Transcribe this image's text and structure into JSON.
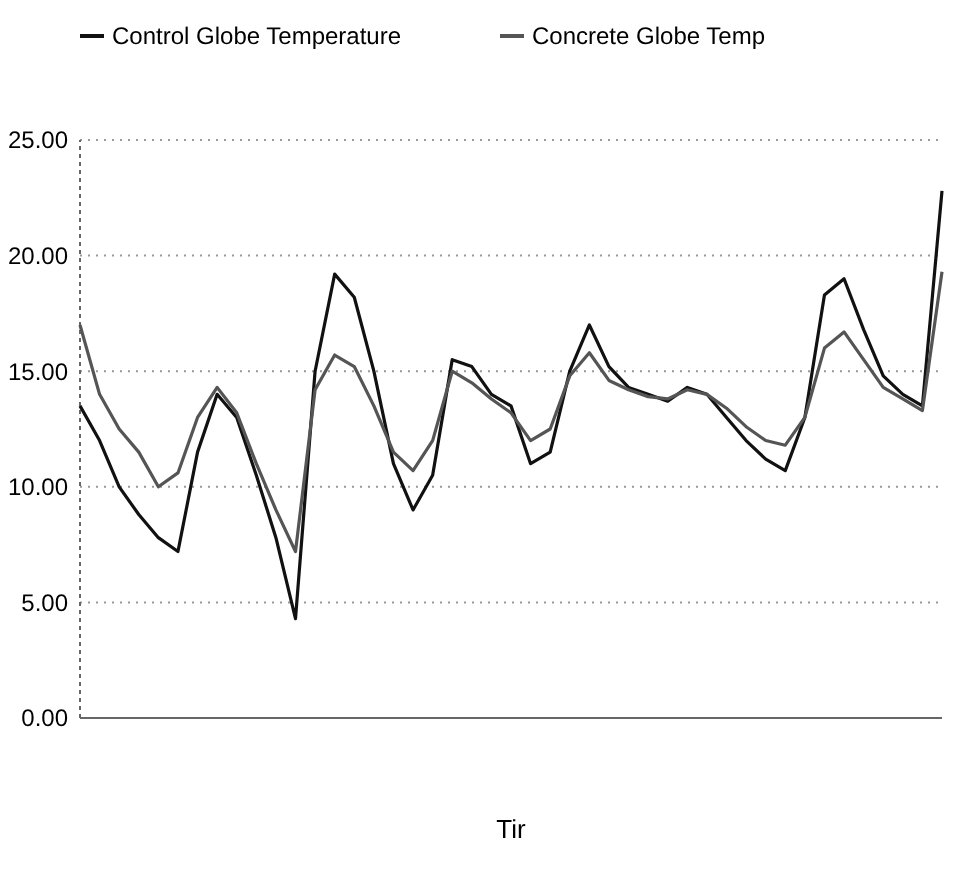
{
  "chart_data": {
    "type": "line",
    "xlabel": "Tir",
    "categories": [
      null,
      null,
      null,
      null,
      null,
      null,
      null,
      null,
      null,
      null,
      null,
      null,
      null,
      null,
      null,
      null,
      null,
      null,
      null,
      null,
      null,
      null,
      null,
      null,
      null,
      null,
      null,
      null,
      null,
      null,
      null,
      null,
      null,
      null,
      null,
      null,
      null,
      null,
      null,
      null,
      null,
      null,
      null,
      null,
      null
    ],
    "series": [
      {
        "name": "Control Globe Temperature",
        "color": "#111111",
        "values": [
          13.5,
          12,
          10,
          8.8,
          7.8,
          7.2,
          11.5,
          14,
          13,
          10.5,
          7.8,
          4.3,
          15,
          19.2,
          18.2,
          15,
          11,
          9,
          10.5,
          15.5,
          15.2,
          14,
          13.5,
          11,
          11.5,
          15,
          17,
          15.2,
          14.3,
          14,
          13.7,
          14.3,
          14,
          13,
          12,
          11.2,
          10.7,
          13,
          18.3,
          19,
          16.8,
          14.8,
          14,
          13.5,
          22.8
        ]
      },
      {
        "name": "Concrete Globe Temp",
        "color": "#555555",
        "values": [
          17,
          14,
          12.5,
          11.5,
          10,
          10.6,
          13,
          14.3,
          13.2,
          11,
          9,
          7.2,
          14.2,
          15.7,
          15.2,
          13.5,
          11.5,
          10.7,
          12,
          15,
          14.5,
          13.8,
          13.2,
          12,
          12.5,
          14.8,
          15.8,
          14.6,
          14.2,
          13.9,
          13.8,
          14.2,
          14,
          13.4,
          12.6,
          12,
          11.8,
          13,
          16,
          16.7,
          15.5,
          14.3,
          13.8,
          13.3,
          19.3
        ]
      }
    ],
    "ylim": [
      0,
      25
    ],
    "yticks": [
      {
        "value": 0,
        "label": "0.00"
      },
      {
        "value": 5,
        "label": "5.00"
      },
      {
        "value": 10,
        "label": "10.00"
      },
      {
        "value": 15,
        "label": "15.00"
      },
      {
        "value": 20,
        "label": "20.00"
      },
      {
        "value": 25,
        "label": "25.00"
      }
    ],
    "grid": "y",
    "legend": "top",
    "marker": "none",
    "line_style": "solid"
  }
}
